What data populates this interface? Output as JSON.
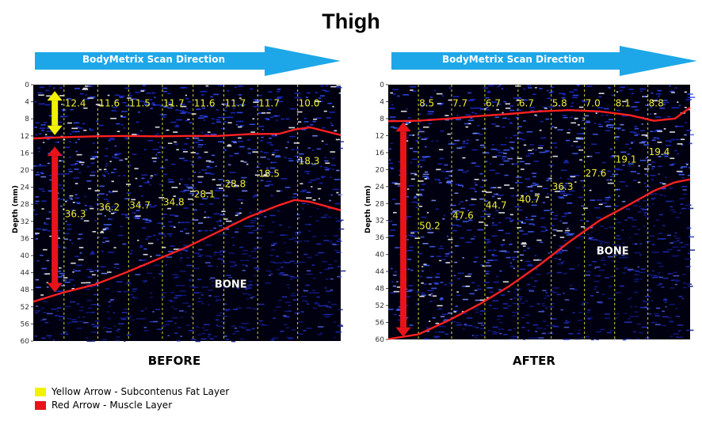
{
  "title": "Thigh",
  "scan_direction_label": "BodyMetrix Scan Direction",
  "colors": {
    "scan_arrow": "#1ea7e8",
    "fat_arrow": "#f2f200",
    "muscle_arrow": "#e8141a",
    "boundary_line": "#ff2020",
    "value_text": "#f0ef30",
    "background_scan": "#000010"
  },
  "chart_data": [
    {
      "type": "line",
      "panel": "before",
      "caption": "BEFORE",
      "ylabel": "Depth (mm)",
      "ylim": [
        0,
        60
      ],
      "yticks": [
        "0",
        "4",
        "8",
        "12",
        "16",
        "20",
        "24",
        "28",
        "32",
        "36",
        "40",
        "44",
        "48",
        "52",
        "56",
        "60"
      ],
      "x_scan_fraction": [
        0.0,
        0.1,
        0.2,
        0.3,
        0.4,
        0.5,
        0.6,
        0.7,
        0.8,
        0.85,
        0.9,
        1.0
      ],
      "series": [
        {
          "name": "Fat/Muscle boundary",
          "depth_mm": [
            12.6,
            12.3,
            12.1,
            12.0,
            12.1,
            12.0,
            12.0,
            11.6,
            11.5,
            10.5,
            10.0,
            11.8
          ]
        },
        {
          "name": "Muscle/Bone boundary",
          "depth_mm": [
            50.8,
            48.6,
            46.8,
            44.0,
            41.0,
            38.0,
            34.5,
            31.0,
            28.2,
            27.0,
            27.4,
            29.4
          ]
        }
      ],
      "fat_labels": [
        "12.4",
        "11.6",
        "11.5",
        "11.7",
        "11.6",
        "11.7",
        "11.7",
        "10.0"
      ],
      "fat_label_x_fraction": [
        0.1,
        0.21,
        0.31,
        0.42,
        0.52,
        0.62,
        0.73,
        0.86
      ],
      "muscle_labels": [
        "36.3",
        "36.2",
        "34.7",
        "34.8",
        "28.1",
        "28.8",
        "18.5",
        "18.3"
      ],
      "muscle_label_x_fraction": [
        0.1,
        0.21,
        0.31,
        0.42,
        0.52,
        0.62,
        0.73,
        0.86
      ],
      "muscle_label_depth_mm": [
        31.0,
        29.4,
        29.0,
        28.2,
        26.4,
        24.0,
        21.6,
        18.6
      ],
      "bone_label": "BONE",
      "bone_label_pos": [
        0.59,
        47.5
      ],
      "gridline_x_fraction": [
        0.1,
        0.21,
        0.31,
        0.42,
        0.52,
        0.62,
        0.73,
        0.86
      ],
      "fat_arrow_mm": [
        1.5,
        11.8
      ],
      "muscle_arrow_mm": [
        14.5,
        48.6
      ],
      "arrow_x_fraction": 0.07
    },
    {
      "type": "line",
      "panel": "after",
      "caption": "AFTER",
      "ylabel": "Depth (mm)",
      "ylim": [
        0,
        60
      ],
      "yticks": [
        "0",
        "4",
        "8",
        "12",
        "16",
        "20",
        "24",
        "28",
        "32",
        "36",
        "40",
        "44",
        "48",
        "52",
        "56",
        "60"
      ],
      "x_scan_fraction": [
        0.0,
        0.1,
        0.2,
        0.3,
        0.4,
        0.5,
        0.6,
        0.7,
        0.8,
        0.88,
        0.95,
        1.0
      ],
      "series": [
        {
          "name": "Fat/Muscle boundary",
          "depth_mm": [
            8.6,
            8.5,
            8.0,
            7.4,
            6.9,
            6.3,
            6.0,
            6.3,
            7.2,
            8.5,
            8.0,
            5.4
          ]
        },
        {
          "name": "Muscle/Bone boundary",
          "depth_mm": [
            59.9,
            58.8,
            55.5,
            51.8,
            47.5,
            42.5,
            37.0,
            32.0,
            28.2,
            25.0,
            23.0,
            22.3
          ]
        }
      ],
      "fat_labels": [
        "8.5",
        "7.7",
        "6.7",
        "6.7",
        "5.8",
        "7.0",
        "8.1",
        "8.8"
      ],
      "fat_label_x_fraction": [
        0.1,
        0.21,
        0.32,
        0.43,
        0.54,
        0.65,
        0.75,
        0.86
      ],
      "muscle_labels": [
        "50.2",
        "47.6",
        "44.7",
        "40.7",
        "36.3",
        "27.6",
        "19.1",
        "19.4"
      ],
      "muscle_label_x_fraction": [
        0.1,
        0.21,
        0.32,
        0.43,
        0.54,
        0.65,
        0.75,
        0.86
      ],
      "muscle_label_depth_mm": [
        34.0,
        31.6,
        29.2,
        27.8,
        24.8,
        21.6,
        18.4,
        16.6
      ],
      "bone_label": "BONE",
      "bone_label_pos": [
        0.69,
        40.0
      ],
      "gridline_x_fraction": [
        0.1,
        0.21,
        0.32,
        0.43,
        0.54,
        0.65,
        0.75,
        0.86
      ],
      "fat_arrow_mm": null,
      "muscle_arrow_mm": [
        8.8,
        59.4
      ],
      "arrow_x_fraction": 0.05
    }
  ],
  "legend": [
    {
      "label": "Yellow Arrow - Subcontenus Fat Layer",
      "color": "#f2f200"
    },
    {
      "label": "Red Arrow - Muscle Layer",
      "color": "#e8141a"
    }
  ]
}
